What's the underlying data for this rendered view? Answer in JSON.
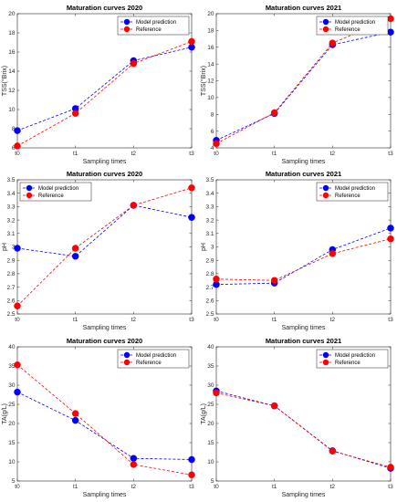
{
  "chart_data": [
    {
      "type": "line",
      "title": "Maturation curves 2020",
      "xlabel": "Sampling times",
      "ylabel": "TSS(°Brix)",
      "categories": [
        "t0",
        "t1",
        "t2",
        "t3"
      ],
      "ylim": [
        6,
        20
      ],
      "yticks": [
        6,
        8,
        10,
        12,
        14,
        16,
        18,
        20
      ],
      "ytick_labels": [
        "6",
        "8",
        "10",
        "12",
        "14",
        "16",
        "18",
        "20"
      ],
      "grid": false,
      "legend": "top-right",
      "series": [
        {
          "name": "Model prediction",
          "color": "#0000ff",
          "values": [
            7.8,
            10.1,
            15.1,
            16.5
          ]
        },
        {
          "name": "Reference",
          "color": "#ff0000",
          "values": [
            6.2,
            9.6,
            14.8,
            17.1
          ]
        }
      ]
    },
    {
      "type": "line",
      "title": "Maturation curves 2021",
      "xlabel": "Sampling times",
      "ylabel": "TSS(°Brix)",
      "categories": [
        "t0",
        "t1",
        "t2",
        "t3"
      ],
      "ylim": [
        4,
        20
      ],
      "yticks": [
        4,
        6,
        8,
        10,
        12,
        14,
        16,
        18,
        20
      ],
      "ytick_labels": [
        "4",
        "6",
        "8",
        "10",
        "12",
        "14",
        "16",
        "18",
        "20"
      ],
      "grid": false,
      "legend": "top-right",
      "series": [
        {
          "name": "Model prediction",
          "color": "#0000ff",
          "values": [
            4.9,
            8.1,
            16.3,
            17.8
          ]
        },
        {
          "name": "Reference",
          "color": "#ff0000",
          "values": [
            4.5,
            8.2,
            16.5,
            19.4
          ]
        }
      ]
    },
    {
      "type": "line",
      "title": "Maturation curves 2020",
      "xlabel": "Sampling times",
      "ylabel": "pH",
      "categories": [
        "t0",
        "t1",
        "t2",
        "t3"
      ],
      "ylim": [
        2.5,
        3.5
      ],
      "yticks": [
        2.5,
        2.6,
        2.7,
        2.8,
        2.9,
        3.0,
        3.1,
        3.2,
        3.3,
        3.4,
        3.5
      ],
      "ytick_labels": [
        "2.5",
        "2.6",
        "2.7",
        "2.8",
        "2.9",
        "3",
        "3.1",
        "3.2",
        "3.3",
        "3.4",
        "3.5"
      ],
      "grid": false,
      "legend": "top-left",
      "series": [
        {
          "name": "Model prediction",
          "color": "#0000ff",
          "values": [
            2.99,
            2.93,
            3.31,
            3.22
          ]
        },
        {
          "name": "Reference",
          "color": "#ff0000",
          "values": [
            2.56,
            2.99,
            3.31,
            3.44
          ]
        }
      ]
    },
    {
      "type": "line",
      "title": "Maturation curves 2021",
      "xlabel": "Sampling times",
      "ylabel": "pH",
      "categories": [
        "t0",
        "t1",
        "t2",
        "t3"
      ],
      "ylim": [
        2.5,
        3.5
      ],
      "yticks": [
        2.5,
        2.6,
        2.7,
        2.8,
        2.9,
        3.0,
        3.1,
        3.2,
        3.3,
        3.4,
        3.5
      ],
      "ytick_labels": [
        "2.5",
        "2.6",
        "2.7",
        "2.8",
        "2.9",
        "3",
        "3.1",
        "3.2",
        "3.3",
        "3.4",
        "3.5"
      ],
      "grid": false,
      "legend": "top-right",
      "series": [
        {
          "name": "Model prediction",
          "color": "#0000ff",
          "values": [
            2.72,
            2.73,
            2.98,
            3.14
          ]
        },
        {
          "name": "Reference",
          "color": "#ff0000",
          "values": [
            2.76,
            2.75,
            2.95,
            3.06
          ]
        }
      ]
    },
    {
      "type": "line",
      "title": "Maturation curves 2020",
      "xlabel": "Sampling times",
      "ylabel": "TA(g/L)",
      "categories": [
        "t0",
        "t1",
        "t2",
        "t3"
      ],
      "ylim": [
        5,
        40
      ],
      "yticks": [
        5,
        10,
        15,
        20,
        25,
        30,
        35,
        40
      ],
      "ytick_labels": [
        "5",
        "10",
        "15",
        "20",
        "25",
        "30",
        "35",
        "40"
      ],
      "grid": false,
      "legend": "top-right",
      "series": [
        {
          "name": "Model prediction",
          "color": "#0000ff",
          "values": [
            28.2,
            20.8,
            10.9,
            10.6
          ]
        },
        {
          "name": "Reference",
          "color": "#ff0000",
          "values": [
            35.3,
            22.6,
            9.3,
            6.6
          ]
        }
      ]
    },
    {
      "type": "line",
      "title": "Maturation curves 2021",
      "xlabel": "Sampling times",
      "ylabel": "TA(g/L)",
      "categories": [
        "t0",
        "t1",
        "t2",
        "t3"
      ],
      "ylim": [
        5,
        40
      ],
      "yticks": [
        5,
        10,
        15,
        20,
        25,
        30,
        35,
        40
      ],
      "ytick_labels": [
        "5",
        "10",
        "15",
        "20",
        "25",
        "30",
        "35",
        "40"
      ],
      "grid": false,
      "legend": "top-right",
      "series": [
        {
          "name": "Model prediction",
          "color": "#0000ff",
          "values": [
            28.5,
            24.6,
            12.9,
            8.3
          ]
        },
        {
          "name": "Reference",
          "color": "#ff0000",
          "values": [
            28.0,
            24.6,
            12.8,
            8.6
          ]
        }
      ]
    }
  ]
}
